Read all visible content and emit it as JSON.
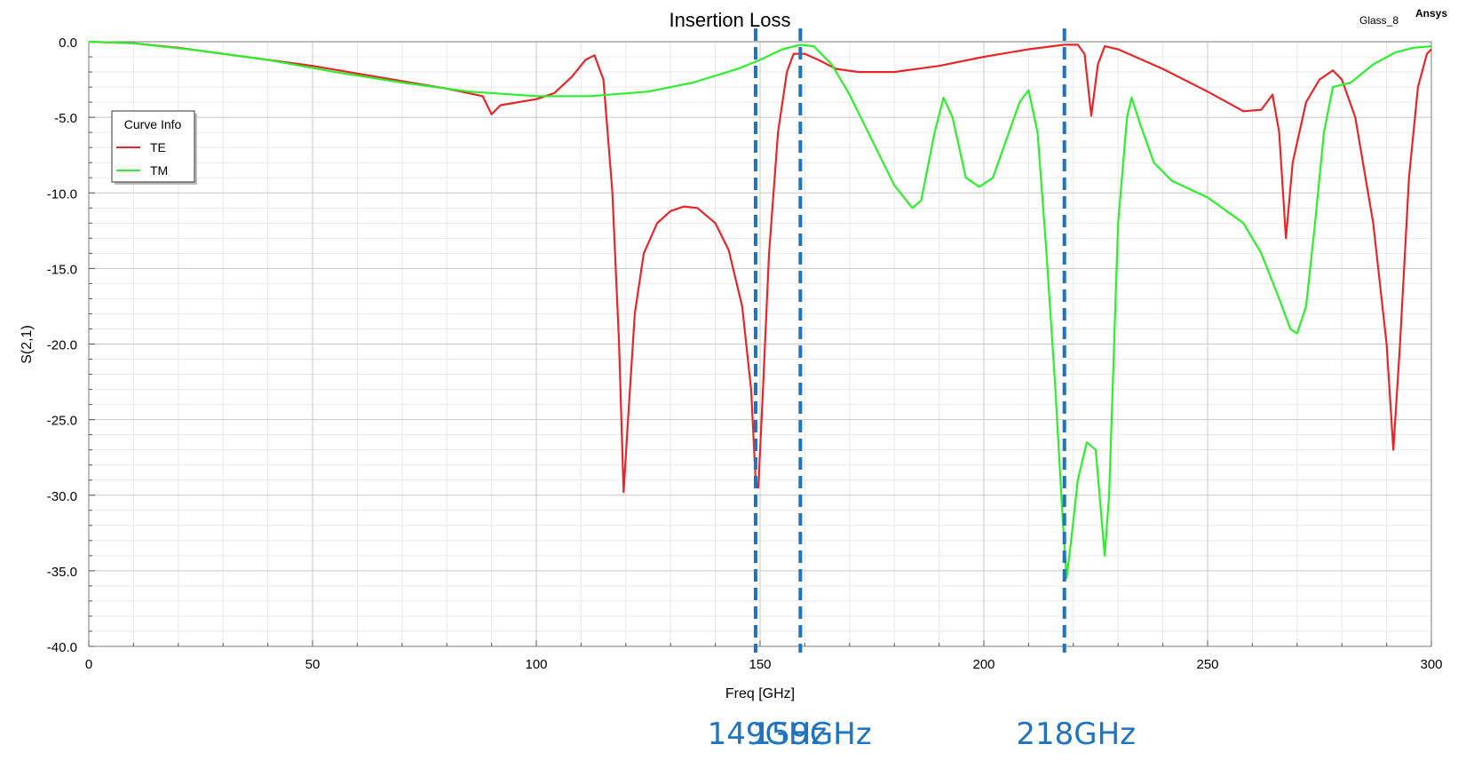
{
  "chart_data": {
    "type": "line",
    "title": "Insertion Loss",
    "project_label": "Glass_8",
    "brand_label": "Ansys",
    "xlabel": "Freq [GHz]",
    "ylabel": "S(2,1)",
    "xlim": [
      0,
      300
    ],
    "ylim": [
      -40,
      0
    ],
    "x_ticks": [
      0,
      50,
      100,
      150,
      200,
      250,
      300
    ],
    "x_tick_labels": [
      "0",
      "50",
      "100",
      "150",
      "200",
      "250",
      "300"
    ],
    "y_ticks": [
      0,
      -5,
      -10,
      -15,
      -20,
      -25,
      -30,
      -35,
      -40
    ],
    "y_tick_labels": [
      "0.0",
      "-5.0",
      "-10.0",
      "-15.0",
      "-20.0",
      "-25.0",
      "-30.0",
      "-35.0",
      "-40.0"
    ],
    "grid": true,
    "legend": {
      "title": "Curve Info",
      "position": "left"
    },
    "series": [
      {
        "name": "TE",
        "color": "#e8262a",
        "points": [
          [
            0,
            0
          ],
          [
            10,
            -0.1
          ],
          [
            20,
            -0.4
          ],
          [
            30,
            -0.8
          ],
          [
            40,
            -1.2
          ],
          [
            50,
            -1.6
          ],
          [
            60,
            -2.1
          ],
          [
            70,
            -2.6
          ],
          [
            80,
            -3.1
          ],
          [
            88,
            -3.6
          ],
          [
            90,
            -4.8
          ],
          [
            92,
            -4.2
          ],
          [
            100,
            -3.8
          ],
          [
            104,
            -3.4
          ],
          [
            108,
            -2.3
          ],
          [
            111,
            -1.2
          ],
          [
            113,
            -0.9
          ],
          [
            115,
            -2.5
          ],
          [
            117,
            -10
          ],
          [
            118.5,
            -20
          ],
          [
            119.5,
            -29.8
          ],
          [
            120.5,
            -25
          ],
          [
            122,
            -18
          ],
          [
            124,
            -14
          ],
          [
            127,
            -12
          ],
          [
            130,
            -11.2
          ],
          [
            133,
            -10.9
          ],
          [
            136,
            -11
          ],
          [
            140,
            -12
          ],
          [
            143,
            -13.8
          ],
          [
            146,
            -17.5
          ],
          [
            148,
            -23
          ],
          [
            149,
            -29
          ],
          [
            149.6,
            -29.5
          ],
          [
            150.5,
            -24
          ],
          [
            152,
            -14
          ],
          [
            154,
            -6
          ],
          [
            156,
            -2
          ],
          [
            157.5,
            -0.8
          ],
          [
            160,
            -0.8
          ],
          [
            163,
            -1.2
          ],
          [
            167,
            -1.8
          ],
          [
            172,
            -2.0
          ],
          [
            180,
            -2.0
          ],
          [
            190,
            -1.6
          ],
          [
            200,
            -1.0
          ],
          [
            210,
            -0.5
          ],
          [
            218,
            -0.2
          ],
          [
            221,
            -0.2
          ],
          [
            222.5,
            -0.8
          ],
          [
            224,
            -4.9
          ],
          [
            225.5,
            -1.5
          ],
          [
            227,
            -0.3
          ],
          [
            230,
            -0.5
          ],
          [
            240,
            -1.8
          ],
          [
            250,
            -3.3
          ],
          [
            258,
            -4.6
          ],
          [
            262,
            -4.5
          ],
          [
            264.5,
            -3.5
          ],
          [
            266,
            -6
          ],
          [
            267.5,
            -13
          ],
          [
            269,
            -8
          ],
          [
            272,
            -4
          ],
          [
            275,
            -2.5
          ],
          [
            278,
            -1.9
          ],
          [
            280,
            -2.5
          ],
          [
            283,
            -5
          ],
          [
            287,
            -12
          ],
          [
            290,
            -20
          ],
          [
            291.5,
            -27
          ],
          [
            293,
            -20
          ],
          [
            295,
            -9
          ],
          [
            297,
            -3
          ],
          [
            299,
            -0.8
          ],
          [
            300,
            -0.5
          ]
        ]
      },
      {
        "name": "TM",
        "color": "#2bf02b",
        "points": [
          [
            0,
            0
          ],
          [
            10,
            -0.1
          ],
          [
            25,
            -0.6
          ],
          [
            40,
            -1.2
          ],
          [
            55,
            -2.0
          ],
          [
            70,
            -2.7
          ],
          [
            85,
            -3.3
          ],
          [
            100,
            -3.6
          ],
          [
            112,
            -3.6
          ],
          [
            125,
            -3.3
          ],
          [
            135,
            -2.7
          ],
          [
            145,
            -1.8
          ],
          [
            150,
            -1.2
          ],
          [
            155,
            -0.5
          ],
          [
            159,
            -0.2
          ],
          [
            162,
            -0.3
          ],
          [
            166,
            -1.5
          ],
          [
            170,
            -3.5
          ],
          [
            175,
            -6.5
          ],
          [
            180,
            -9.5
          ],
          [
            184,
            -11.0
          ],
          [
            186,
            -10.5
          ],
          [
            189,
            -6
          ],
          [
            191,
            -3.7
          ],
          [
            193,
            -5
          ],
          [
            196,
            -9
          ],
          [
            199,
            -9.6
          ],
          [
            202,
            -9
          ],
          [
            205,
            -6.5
          ],
          [
            208,
            -4
          ],
          [
            210,
            -3.2
          ],
          [
            212,
            -6
          ],
          [
            214,
            -14
          ],
          [
            216,
            -23
          ],
          [
            217.5,
            -31
          ],
          [
            218.5,
            -35.5
          ],
          [
            219.5,
            -33
          ],
          [
            221,
            -29
          ],
          [
            223,
            -26.5
          ],
          [
            225,
            -27
          ],
          [
            227,
            -34
          ],
          [
            228,
            -30
          ],
          [
            230,
            -12
          ],
          [
            232,
            -5
          ],
          [
            233,
            -3.7
          ],
          [
            235,
            -5.5
          ],
          [
            238,
            -8
          ],
          [
            242,
            -9.2
          ],
          [
            250,
            -10.3
          ],
          [
            258,
            -12
          ],
          [
            262,
            -14
          ],
          [
            266,
            -17
          ],
          [
            268.5,
            -19
          ],
          [
            270,
            -19.3
          ],
          [
            272,
            -17.5
          ],
          [
            274,
            -12
          ],
          [
            276,
            -6
          ],
          [
            278,
            -3
          ],
          [
            282,
            -2.7
          ],
          [
            287,
            -1.5
          ],
          [
            292,
            -0.7
          ],
          [
            296,
            -0.4
          ],
          [
            300,
            -0.3
          ]
        ]
      }
    ],
    "markers": [
      {
        "x": 149,
        "label": "149GHz"
      },
      {
        "x": 159,
        "label": "159GHz"
      },
      {
        "x": 218,
        "label": "218GHz"
      }
    ],
    "marker_color": "#1f73bf"
  }
}
